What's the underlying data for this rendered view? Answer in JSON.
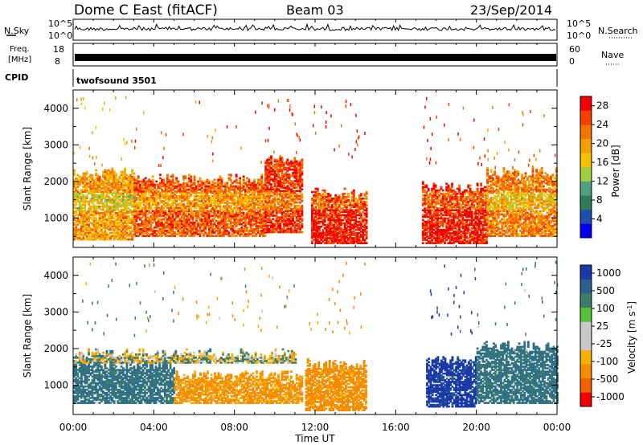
{
  "header": {
    "station": "Dome C East (fitACF)",
    "beam": "Beam 03",
    "date": "23/Sep/2014"
  },
  "noise_panel": {
    "left_label": "N.Sky",
    "left_ticks": [
      "10^5",
      "10^0"
    ],
    "right_ticks": [
      "10^5",
      "10^0"
    ],
    "right_label": "N.Search"
  },
  "freq_panel": {
    "left_label_line1": "Freq.",
    "left_label_line2": "[MHz]",
    "left_ticks": [
      "18",
      "8"
    ],
    "right_ticks": [
      "60",
      "0"
    ],
    "right_label": "Nave"
  },
  "cpid_panel": {
    "label": "CPID",
    "program": "twofsound 3501"
  },
  "colors": {
    "power": [
      "#0000ee",
      "#1f4fae",
      "#2f7d55",
      "#4fa07c",
      "#9fcf3f",
      "#f5c400",
      "#f5a000",
      "#f57300",
      "#f54000",
      "#f20000"
    ],
    "velocity": [
      "#1a3aa8",
      "#2a5f8e",
      "#3c7d6a",
      "#55c23a",
      "#c8c8c8",
      "#c8c8c8",
      "#f5b000",
      "#f58c00",
      "#f56000",
      "#f20000"
    ],
    "noise_line": "#000000",
    "freq_band": "#000000"
  },
  "chart_data": [
    {
      "type": "heatmap",
      "title": "",
      "xlabel": "Time UT",
      "ylabel": "Slant Range [km]",
      "xlim": [
        "00:00",
        "24:00"
      ],
      "ylim": [
        200,
        4500
      ],
      "x_ticks": [
        "00:00",
        "04:00",
        "08:00",
        "12:00",
        "16:00",
        "20:00",
        "00:00"
      ],
      "y_ticks": [
        1000,
        2000,
        3000,
        4000
      ],
      "colorbar": {
        "label": "Power [dB]",
        "ticks": [
          4,
          8,
          12,
          16,
          20,
          24,
          28
        ],
        "range": [
          0,
          30
        ]
      },
      "regions": [
        {
          "start_h": 0.0,
          "end_h": 3.0,
          "range_min": 400,
          "range_max": 2400,
          "level": 20
        },
        {
          "start_h": 3.0,
          "end_h": 9.5,
          "range_min": 500,
          "range_max": 2200,
          "level": 24
        },
        {
          "start_h": 9.5,
          "end_h": 11.3,
          "range_min": 600,
          "range_max": 2700,
          "level": 26
        },
        {
          "start_h": 11.8,
          "end_h": 14.5,
          "range_min": 300,
          "range_max": 1800,
          "level": 28
        },
        {
          "start_h": 17.3,
          "end_h": 20.5,
          "range_min": 300,
          "range_max": 2000,
          "level": 28
        },
        {
          "start_h": 20.5,
          "end_h": 24.0,
          "range_min": 500,
          "range_max": 2400,
          "level": 22
        }
      ]
    },
    {
      "type": "heatmap",
      "title": "",
      "xlabel": "Time UT",
      "ylabel": "Slant Range [km]",
      "xlim": [
        "00:00",
        "24:00"
      ],
      "ylim": [
        200,
        4500
      ],
      "x_ticks": [
        "00:00",
        "04:00",
        "08:00",
        "12:00",
        "16:00",
        "20:00",
        "00:00"
      ],
      "y_ticks": [
        1000,
        2000,
        3000,
        4000
      ],
      "colorbar": {
        "label": "Velocity [m s^-1]",
        "ticks": [
          "1000",
          "500",
          "100",
          "25",
          "-25",
          "-100",
          "-500",
          "-1000"
        ]
      },
      "regions": [
        {
          "start_h": 0.0,
          "end_h": 5.0,
          "range_min": 500,
          "range_max": 1700,
          "velocity": 150
        },
        {
          "start_h": 0.0,
          "end_h": 11.0,
          "range_min": 1600,
          "range_max": 2000,
          "velocity": 0
        },
        {
          "start_h": 5.0,
          "end_h": 11.3,
          "range_min": 500,
          "range_max": 1400,
          "velocity": -150
        },
        {
          "start_h": 11.5,
          "end_h": 14.5,
          "range_min": 300,
          "range_max": 1700,
          "velocity": -200
        },
        {
          "start_h": 17.5,
          "end_h": 20.0,
          "range_min": 400,
          "range_max": 1800,
          "velocity": 600
        },
        {
          "start_h": 20.0,
          "end_h": 24.0,
          "range_min": 500,
          "range_max": 2200,
          "velocity": 150
        }
      ]
    }
  ]
}
